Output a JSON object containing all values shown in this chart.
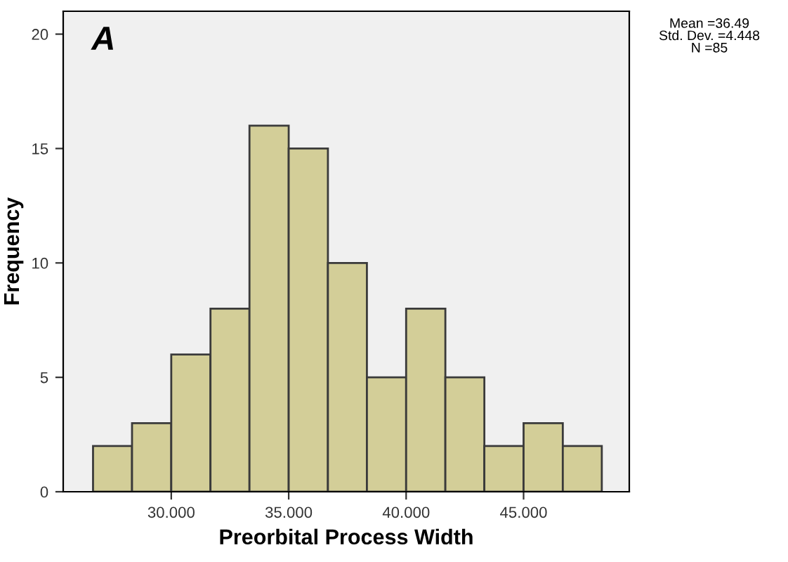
{
  "chart_data": {
    "type": "histogram",
    "xlabel": "Preorbital Process Width",
    "ylabel": "Frequency",
    "bins": [
      26.67,
      28.33,
      30,
      31.67,
      33.33,
      35,
      36.67,
      38.33,
      40,
      41.67,
      43.33,
      45,
      46.67,
      48.33
    ],
    "values": [
      2,
      3,
      6,
      8,
      16,
      15,
      10,
      5,
      8,
      5,
      2,
      3,
      2
    ],
    "color": "#d3ce98",
    "xlim": [
      25.4,
      49.5
    ],
    "ylim": [
      0,
      21
    ],
    "xticks": [
      {
        "value": 30,
        "label": "30.000"
      },
      {
        "value": 35,
        "label": "35.000"
      },
      {
        "value": 40,
        "label": "40.000"
      },
      {
        "value": 45,
        "label": "45.000"
      }
    ],
    "yticks": [
      0,
      5,
      10,
      15,
      20
    ],
    "grid": false,
    "annotations": [
      "A",
      "Mean =36.49\nStd. Dev. =4.448\nN =85"
    ]
  }
}
